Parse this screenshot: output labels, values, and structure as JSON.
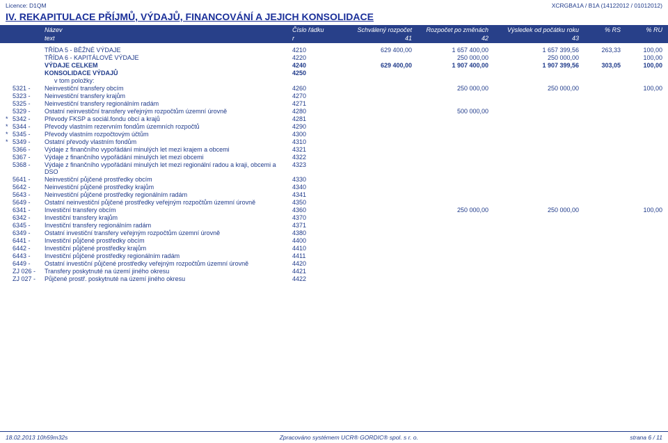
{
  "header": {
    "license": "Licence: D1QM",
    "code": "XCRGBA1A / B1A (14122012 / 01012012)"
  },
  "section_title": "IV. REKAPITULACE PŘÍJMŮ, VÝDAJŮ, FINANCOVÁNÍ A JEJICH KONSOLIDACE",
  "cols": {
    "name": "Název",
    "text": "text",
    "rnum": "Číslo řádku",
    "r": "r",
    "v1": "Schválený rozpočet",
    "n1": "41",
    "v2": "Rozpočet po změnách",
    "n2": "42",
    "v3": "Výsledek od počátku roku",
    "n3": "43",
    "p1": "% RS",
    "p2": "% RU"
  },
  "rows": [
    {
      "star": "",
      "code": "",
      "label": "TŘÍDA 5 - BĚŽNÉ VÝDAJE",
      "r": "4210",
      "v1": "629 400,00",
      "v2": "1 657 400,00",
      "v3": "1 657 399,56",
      "p1": "263,33",
      "p2": "100,00",
      "indent": 0
    },
    {
      "star": "",
      "code": "",
      "label": "TŘÍDA 6 - KAPITÁLOVÉ VÝDAJE",
      "r": "4220",
      "v1": "",
      "v2": "250 000,00",
      "v3": "250 000,00",
      "p1": "",
      "p2": "100,00",
      "indent": 0
    },
    {
      "star": "",
      "code": "",
      "label": "VÝDAJE CELKEM",
      "r": "4240",
      "v1": "629 400,00",
      "v2": "1 907 400,00",
      "v3": "1 907 399,56",
      "p1": "303,05",
      "p2": "100,00",
      "indent": 0,
      "bold": true
    },
    {
      "star": "",
      "code": "",
      "label": "KONSOLIDACE VÝDAJŮ",
      "r": "4250",
      "v1": "",
      "v2": "",
      "v3": "",
      "p1": "",
      "p2": "",
      "indent": 0,
      "bold": true
    },
    {
      "star": "",
      "code": "",
      "label": "v tom položky:",
      "r": "",
      "v1": "",
      "v2": "",
      "v3": "",
      "p1": "",
      "p2": "",
      "indent": 1
    },
    {
      "star": "",
      "code": "5321 -",
      "label": "Neinvestiční transfery obcím",
      "r": "4260",
      "v1": "",
      "v2": "250 000,00",
      "v3": "250 000,00",
      "p1": "",
      "p2": "100,00",
      "indent": 2
    },
    {
      "star": "",
      "code": "5323 -",
      "label": "Neinvestiční transfery krajům",
      "r": "4270",
      "v1": "",
      "v2": "",
      "v3": "",
      "p1": "",
      "p2": "",
      "indent": 2
    },
    {
      "star": "",
      "code": "5325 -",
      "label": "Neinvestiční transfery regionálním radám",
      "r": "4271",
      "v1": "",
      "v2": "",
      "v3": "",
      "p1": "",
      "p2": "",
      "indent": 2
    },
    {
      "star": "",
      "code": "5329 -",
      "label": "Ostatní neinvestiční transfery veřejným rozpočtům územní úrovně",
      "r": "4280",
      "v1": "",
      "v2": "500 000,00",
      "v3": "",
      "p1": "",
      "p2": "",
      "indent": 2
    },
    {
      "star": "*",
      "code": "5342 -",
      "label": "Převody FKSP a sociál.fondu obcí a krajů",
      "r": "4281",
      "v1": "",
      "v2": "",
      "v3": "",
      "p1": "",
      "p2": "",
      "indent": 2
    },
    {
      "star": "*",
      "code": "5344 -",
      "label": "Převody vlastním rezervním fondům územních rozpočtů",
      "r": "4290",
      "v1": "",
      "v2": "",
      "v3": "",
      "p1": "",
      "p2": "",
      "indent": 2
    },
    {
      "star": "*",
      "code": "5345 -",
      "label": "Převody vlastním rozpočtovým účtům",
      "r": "4300",
      "v1": "",
      "v2": "",
      "v3": "",
      "p1": "",
      "p2": "",
      "indent": 2
    },
    {
      "star": "*",
      "code": "5349 -",
      "label": "Ostatní převody vlastním fondům",
      "r": "4310",
      "v1": "",
      "v2": "",
      "v3": "",
      "p1": "",
      "p2": "",
      "indent": 2
    },
    {
      "star": "",
      "code": "5366 -",
      "label": "Výdaje z finančního vypořádání minulých let mezi krajem a obcemi",
      "r": "4321",
      "v1": "",
      "v2": "",
      "v3": "",
      "p1": "",
      "p2": "",
      "indent": 2
    },
    {
      "star": "",
      "code": "5367 -",
      "label": "Výdaje z finančního vypořádání minulých let mezi obcemi",
      "r": "4322",
      "v1": "",
      "v2": "",
      "v3": "",
      "p1": "",
      "p2": "",
      "indent": 2
    },
    {
      "star": "",
      "code": "5368 -",
      "label": "Výdaje z finančního vypořádání minulých let mezi regionální radou a kraji, obcemi a DSO",
      "r": "4323",
      "v1": "",
      "v2": "",
      "v3": "",
      "p1": "",
      "p2": "",
      "indent": 2
    },
    {
      "star": "",
      "code": "5641 -",
      "label": "Neinvestiční půjčené prostředky obcím",
      "r": "4330",
      "v1": "",
      "v2": "",
      "v3": "",
      "p1": "",
      "p2": "",
      "indent": 2
    },
    {
      "star": "",
      "code": "5642 -",
      "label": "Neinvestiční půjčené prostředky krajům",
      "r": "4340",
      "v1": "",
      "v2": "",
      "v3": "",
      "p1": "",
      "p2": "",
      "indent": 2
    },
    {
      "star": "",
      "code": "5643 -",
      "label": "Neinvestiční půjčené prostředky regionálním radám",
      "r": "4341",
      "v1": "",
      "v2": "",
      "v3": "",
      "p1": "",
      "p2": "",
      "indent": 2
    },
    {
      "star": "",
      "code": "5649 -",
      "label": "Ostatní neinvestiční půjčené prostředky veřejným rozpočtům územní úrovně",
      "r": "4350",
      "v1": "",
      "v2": "",
      "v3": "",
      "p1": "",
      "p2": "",
      "indent": 2
    },
    {
      "star": "",
      "code": "6341 -",
      "label": "Investiční transfery obcím",
      "r": "4360",
      "v1": "",
      "v2": "250 000,00",
      "v3": "250 000,00",
      "p1": "",
      "p2": "100,00",
      "indent": 2
    },
    {
      "star": "",
      "code": "6342 -",
      "label": "Investiční transfery krajům",
      "r": "4370",
      "v1": "",
      "v2": "",
      "v3": "",
      "p1": "",
      "p2": "",
      "indent": 2
    },
    {
      "star": "",
      "code": "6345 -",
      "label": "Investiční transfery regionálním radám",
      "r": "4371",
      "v1": "",
      "v2": "",
      "v3": "",
      "p1": "",
      "p2": "",
      "indent": 2
    },
    {
      "star": "",
      "code": "6349 -",
      "label": "Ostatní investiční transfery veřejným rozpočtům územní úrovně",
      "r": "4380",
      "v1": "",
      "v2": "",
      "v3": "",
      "p1": "",
      "p2": "",
      "indent": 2
    },
    {
      "star": "",
      "code": "6441 -",
      "label": "Investiční půjčené prostředky obcím",
      "r": "4400",
      "v1": "",
      "v2": "",
      "v3": "",
      "p1": "",
      "p2": "",
      "indent": 2
    },
    {
      "star": "",
      "code": "6442 -",
      "label": "Investiční půjčené prostředky krajům",
      "r": "4410",
      "v1": "",
      "v2": "",
      "v3": "",
      "p1": "",
      "p2": "",
      "indent": 2
    },
    {
      "star": "",
      "code": "6443 -",
      "label": "Investiční půjčené prostředky regionálním radám",
      "r": "4411",
      "v1": "",
      "v2": "",
      "v3": "",
      "p1": "",
      "p2": "",
      "indent": 2
    },
    {
      "star": "",
      "code": "6449 -",
      "label": "Ostatní investiční půjčené prostředky veřejným rozpočtům územní úrovně",
      "r": "4420",
      "v1": "",
      "v2": "",
      "v3": "",
      "p1": "",
      "p2": "",
      "indent": 2
    },
    {
      "star": "",
      "code": "ZJ 026 -",
      "label": "Transfery poskytnuté na území jiného okresu",
      "r": "4421",
      "v1": "",
      "v2": "",
      "v3": "",
      "p1": "",
      "p2": "",
      "indent": 2
    },
    {
      "star": "",
      "code": "ZJ 027 -",
      "label": "Půjčené prostř. poskytnuté na území jiného okresu",
      "r": "4422",
      "v1": "",
      "v2": "",
      "v3": "",
      "p1": "",
      "p2": "",
      "indent": 2
    }
  ],
  "footer": {
    "left": "18.02.2013 10h59m32s",
    "center": "Zpracováno systémem UCR® GORDIC® spol. s r. o.",
    "right": "strana 6 / 11"
  },
  "style": {
    "header_bg": "#284089",
    "text_color": "#1f3a8a",
    "title_color": "#1a2f99",
    "background": "#ffffff"
  }
}
